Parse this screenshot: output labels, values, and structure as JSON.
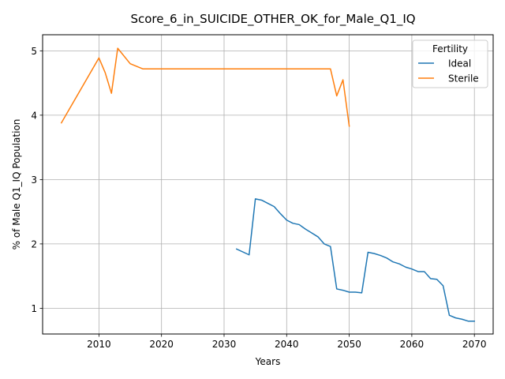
{
  "chart_data": {
    "type": "line",
    "title": "Score_6_in_SUICIDE_OTHER_OK_for_Male_Q1_IQ",
    "xlabel": "Years",
    "ylabel": "% of Male Q1_IQ Population",
    "xlim": [
      2001,
      2073
    ],
    "ylim": [
      0.6,
      5.25
    ],
    "xticks": [
      2010,
      2020,
      2030,
      2040,
      2050,
      2060,
      2070
    ],
    "yticks": [
      1,
      2,
      3,
      4,
      5
    ],
    "grid": true,
    "legend": {
      "title": "Fertility",
      "position": "top-right"
    },
    "series": [
      {
        "name": "Ideal",
        "color": "#1f77b4",
        "x": [
          2032,
          2034,
          2035,
          2036,
          2037,
          2038,
          2039,
          2040,
          2041,
          2042,
          2043,
          2044,
          2045,
          2046,
          2047,
          2048,
          2049,
          2050,
          2051,
          2052,
          2053,
          2054,
          2055,
          2056,
          2057,
          2058,
          2059,
          2060,
          2061,
          2062,
          2063,
          2064,
          2065,
          2066,
          2067,
          2068,
          2069,
          2070
        ],
        "y": [
          1.92,
          1.83,
          2.7,
          2.68,
          2.63,
          2.58,
          2.47,
          2.37,
          2.32,
          2.3,
          2.23,
          2.17,
          2.11,
          2.0,
          1.96,
          1.3,
          1.28,
          1.25,
          1.25,
          1.24,
          1.87,
          1.85,
          1.82,
          1.78,
          1.72,
          1.69,
          1.64,
          1.61,
          1.57,
          1.57,
          1.46,
          1.45,
          1.35,
          0.89,
          0.85,
          0.83,
          0.8,
          0.8
        ]
      },
      {
        "name": "Sterile",
        "color": "#ff7f0e",
        "x": [
          2004,
          2010,
          2011,
          2012,
          2013,
          2015,
          2017,
          2047,
          2048,
          2049,
          2050
        ],
        "y": [
          3.88,
          4.89,
          4.66,
          4.34,
          5.04,
          4.8,
          4.72,
          4.72,
          4.3,
          4.55,
          3.83
        ]
      }
    ]
  }
}
